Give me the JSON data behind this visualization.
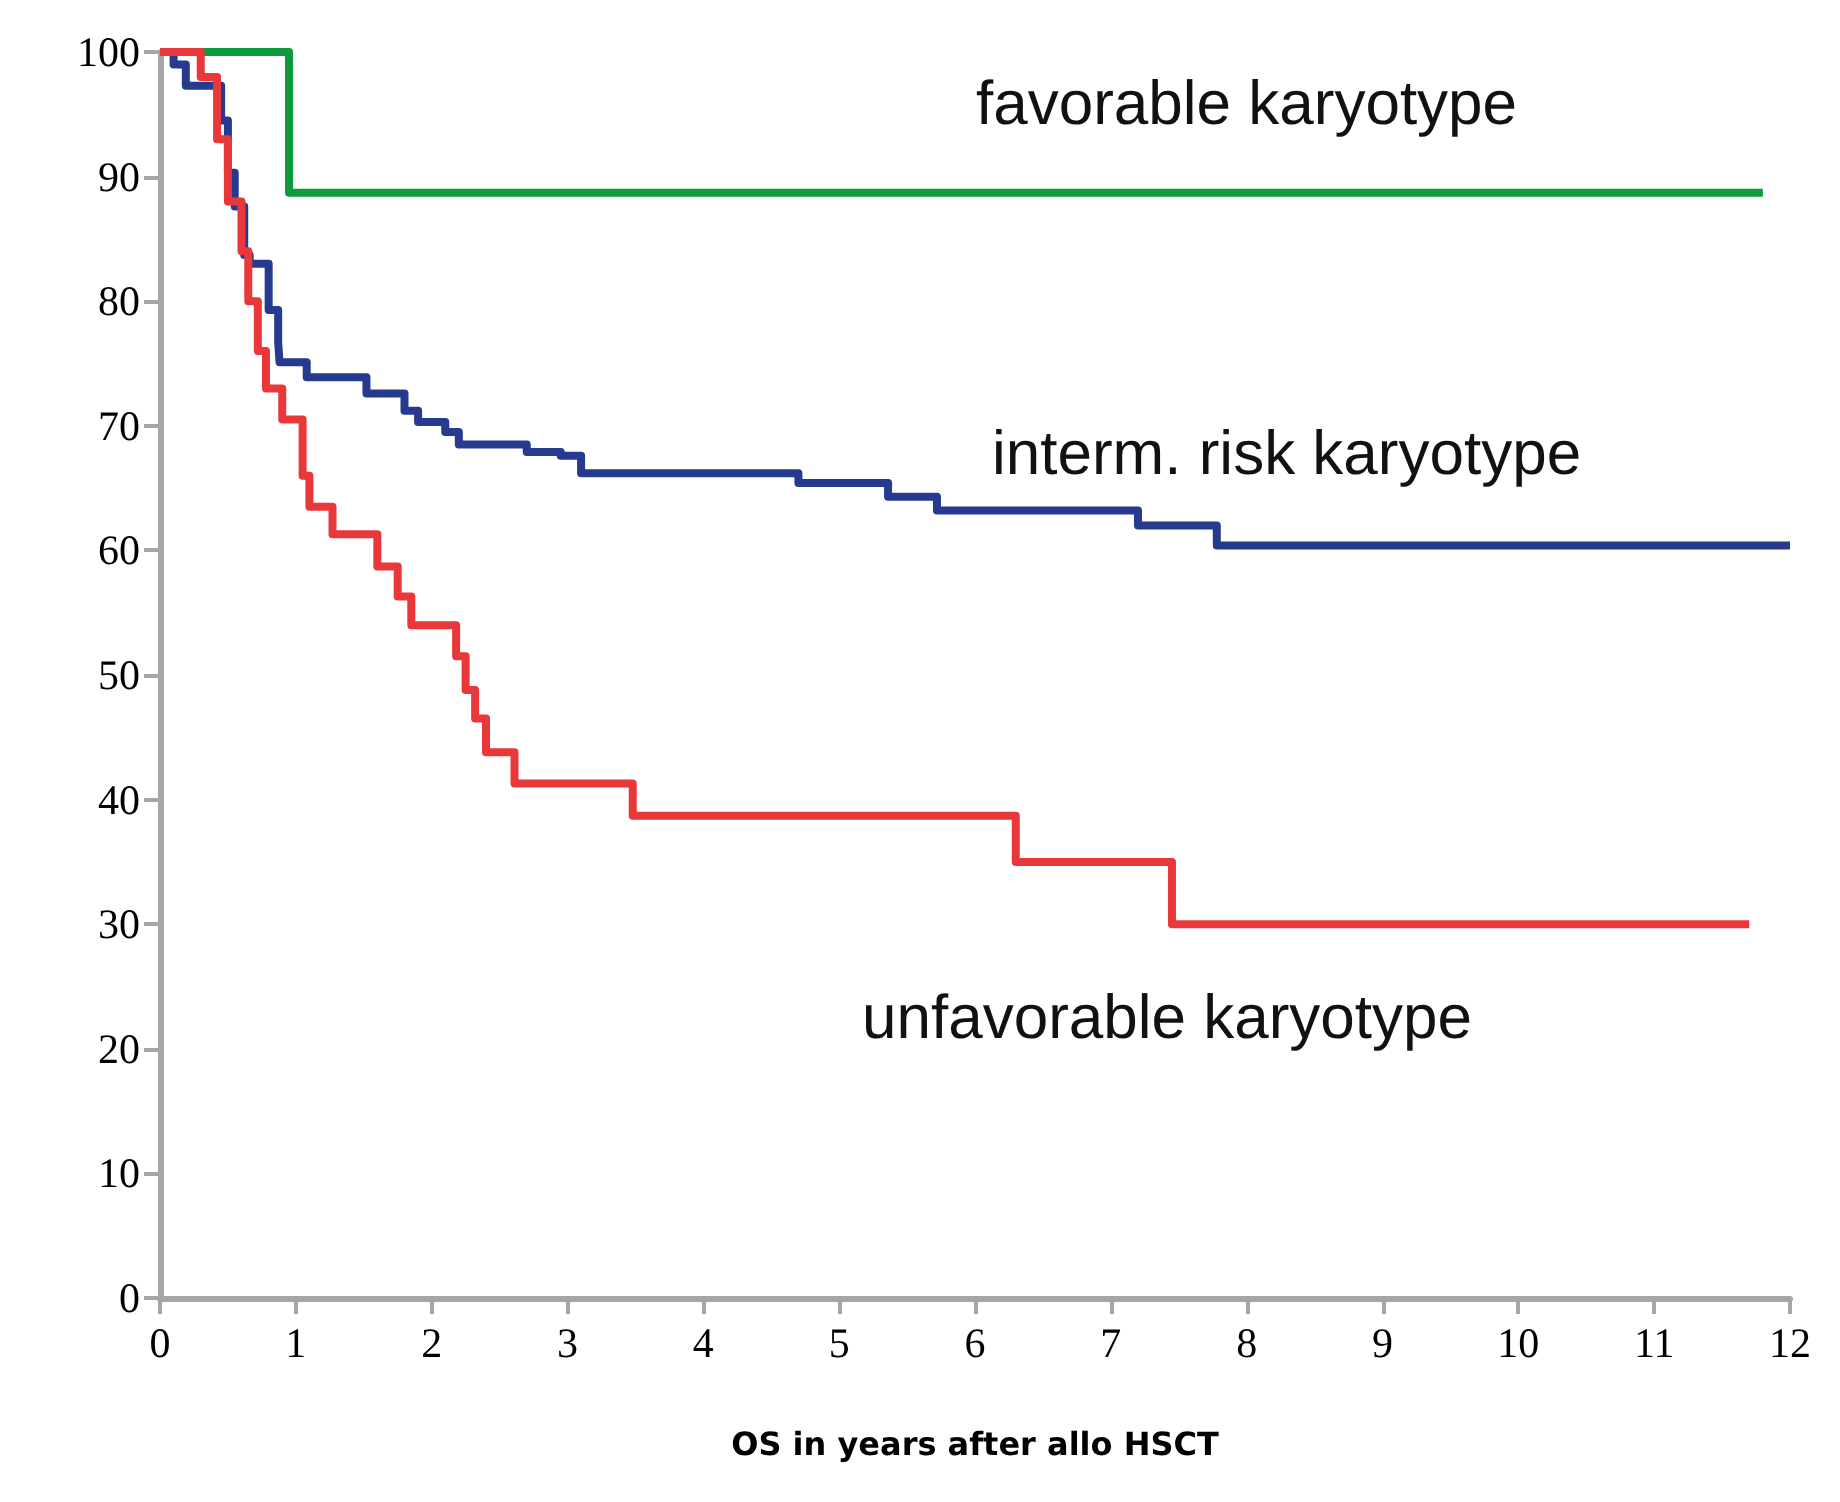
{
  "chart_data": {
    "type": "step",
    "xlabel": "OS in years after allo HSCT",
    "xlim": [
      0,
      12
    ],
    "xticks": [
      0,
      1,
      2,
      3,
      4,
      5,
      6,
      7,
      8,
      9,
      10,
      11,
      12
    ],
    "ylim": [
      0,
      100
    ],
    "yticks": [
      0,
      10,
      20,
      30,
      40,
      50,
      60,
      70,
      80,
      90,
      100
    ],
    "grid": false,
    "legend": false,
    "marker": "none",
    "line_style": "solid",
    "series": [
      {
        "name": "favorable karyotype",
        "color": "#0b9a3c",
        "x": [
          0,
          0.95,
          11.8
        ],
        "values": [
          100,
          88.7,
          88.7
        ]
      },
      {
        "name": "interm. risk karyotype",
        "color": "#263a8f",
        "x": [
          0,
          0.1,
          0.19,
          0.45,
          0.5,
          0.55,
          0.62,
          0.66,
          0.8,
          0.87,
          0.88,
          1.08,
          1.52,
          1.8,
          1.9,
          2.1,
          2.2,
          2.7,
          2.95,
          3.1,
          4.7,
          5.36,
          5.72,
          7.2,
          7.78,
          12.0
        ],
        "values": [
          100,
          99,
          97.3,
          94.5,
          90.3,
          87.6,
          83.7,
          83,
          79.3,
          76.7,
          75.1,
          73.9,
          72.6,
          71.2,
          70.3,
          69.5,
          68.5,
          67.9,
          67.6,
          66.2,
          65.4,
          64.3,
          63.2,
          62,
          60.4,
          60.4
        ]
      },
      {
        "name": "unfavorable karyotype",
        "color": "#e8383a",
        "x": [
          0,
          0.3,
          0.42,
          0.5,
          0.6,
          0.65,
          0.72,
          0.78,
          0.9,
          1.05,
          1.1,
          1.27,
          1.6,
          1.75,
          1.85,
          2.18,
          2.25,
          2.32,
          2.4,
          2.61,
          3.48,
          6.3,
          7.45,
          11.7
        ],
        "values": [
          100,
          98,
          93,
          88,
          84,
          80,
          76,
          73,
          70.5,
          66,
          63.5,
          61.3,
          58.7,
          56.3,
          54,
          51.5,
          48.8,
          46.5,
          43.8,
          41.3,
          38.7,
          35,
          30,
          30
        ]
      }
    ]
  }
}
